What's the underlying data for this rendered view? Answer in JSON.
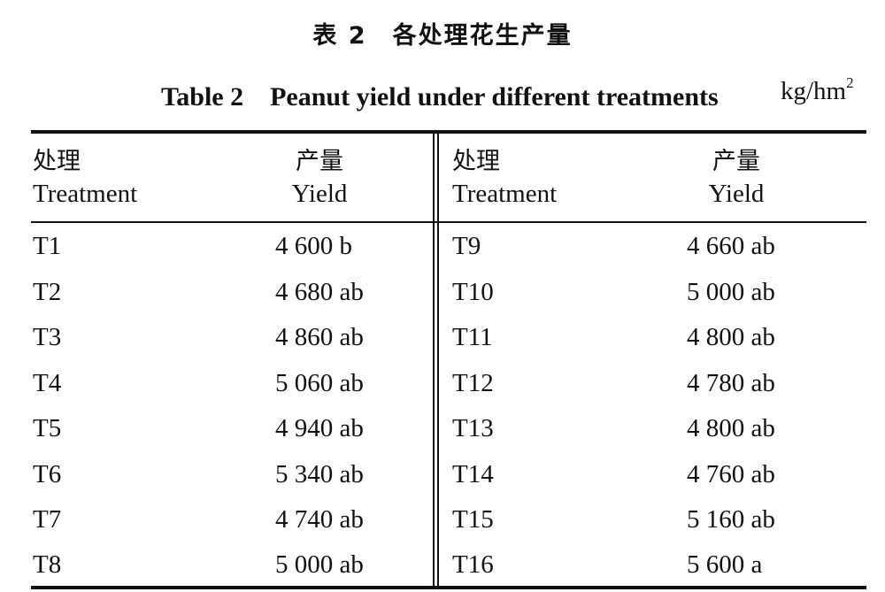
{
  "table": {
    "title_cn": "表 2　各处理花生产量",
    "title_en": "Table 2　Peanut yield under different treatments",
    "unit_base": "kg/hm",
    "unit_sup": "2",
    "headers": {
      "left_treatment_cn": "处理",
      "left_treatment_en": "Treatment",
      "left_yield_cn": "产量",
      "left_yield_en": "Yield",
      "right_treatment_cn": "处理",
      "right_treatment_en": "Treatment",
      "right_yield_cn": "产量",
      "right_yield_en": "Yield"
    },
    "rows": [
      {
        "t1": "T1",
        "y1": "4 600 b",
        "t2": "T9",
        "y2": "4 660 ab"
      },
      {
        "t1": "T2",
        "y1": "4 680 ab",
        "t2": "T10",
        "y2": "5 000 ab"
      },
      {
        "t1": "T3",
        "y1": "4 860 ab",
        "t2": "T11",
        "y2": "4 800 ab"
      },
      {
        "t1": "T4",
        "y1": "5 060 ab",
        "t2": "T12",
        "y2": "4 780 ab"
      },
      {
        "t1": "T5",
        "y1": "4 940 ab",
        "t2": "T13",
        "y2": "4 800 ab"
      },
      {
        "t1": "T6",
        "y1": "5 340 ab",
        "t2": "T14",
        "y2": "4 760 ab"
      },
      {
        "t1": "T7",
        "y1": "4 740 ab",
        "t2": "T15",
        "y2": "5 160 ab"
      },
      {
        "t1": "T8",
        "y1": "5 000 ab",
        "t2": "T16",
        "y2": "5 600 a"
      }
    ]
  }
}
